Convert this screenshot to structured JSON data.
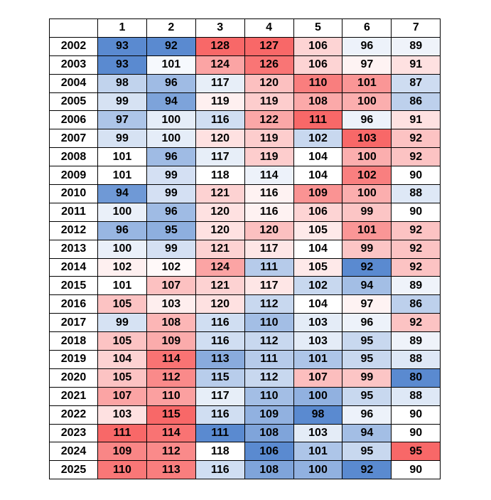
{
  "chart_data": {
    "type": "heatmap",
    "columns": [
      "1",
      "2",
      "3",
      "4",
      "5",
      "6",
      "7"
    ],
    "rows": [
      "2002",
      "2003",
      "2004",
      "2005",
      "2006",
      "2007",
      "2008",
      "2009",
      "2010",
      "2011",
      "2012",
      "2013",
      "2014",
      "2015",
      "2016",
      "2017",
      "2018",
      "2019",
      "2020",
      "2021",
      "2022",
      "2023",
      "2024",
      "2025"
    ],
    "values": [
      [
        93,
        92,
        128,
        127,
        106,
        96,
        89
      ],
      [
        93,
        101,
        124,
        126,
        106,
        97,
        91
      ],
      [
        98,
        96,
        117,
        120,
        110,
        101,
        87
      ],
      [
        99,
        94,
        119,
        119,
        108,
        100,
        86
      ],
      [
        97,
        100,
        116,
        122,
        111,
        96,
        91
      ],
      [
        99,
        100,
        120,
        119,
        102,
        103,
        92
      ],
      [
        101,
        96,
        117,
        119,
        104,
        100,
        92
      ],
      [
        101,
        99,
        118,
        114,
        104,
        102,
        90
      ],
      [
        94,
        99,
        121,
        116,
        109,
        100,
        88
      ],
      [
        100,
        96,
        120,
        116,
        106,
        99,
        90
      ],
      [
        96,
        95,
        120,
        120,
        105,
        101,
        92
      ],
      [
        100,
        99,
        121,
        117,
        104,
        99,
        92
      ],
      [
        102,
        102,
        124,
        111,
        105,
        92,
        92
      ],
      [
        101,
        107,
        121,
        117,
        102,
        94,
        89
      ],
      [
        105,
        103,
        120,
        112,
        104,
        97,
        86
      ],
      [
        99,
        108,
        116,
        110,
        103,
        96,
        92
      ],
      [
        105,
        109,
        116,
        112,
        103,
        95,
        89
      ],
      [
        104,
        114,
        113,
        111,
        101,
        95,
        88
      ],
      [
        105,
        112,
        115,
        112,
        107,
        99,
        80
      ],
      [
        107,
        110,
        117,
        110,
        100,
        95,
        88
      ],
      [
        103,
        115,
        116,
        109,
        98,
        96,
        90
      ],
      [
        111,
        114,
        111,
        108,
        103,
        94,
        90
      ],
      [
        109,
        112,
        118,
        106,
        101,
        95,
        95
      ],
      [
        110,
        113,
        116,
        108,
        100,
        92,
        90
      ]
    ],
    "color_scale": {
      "low": "#5a8ad0",
      "mid": "#ffffff",
      "high": "#f86868"
    },
    "grid": true
  }
}
